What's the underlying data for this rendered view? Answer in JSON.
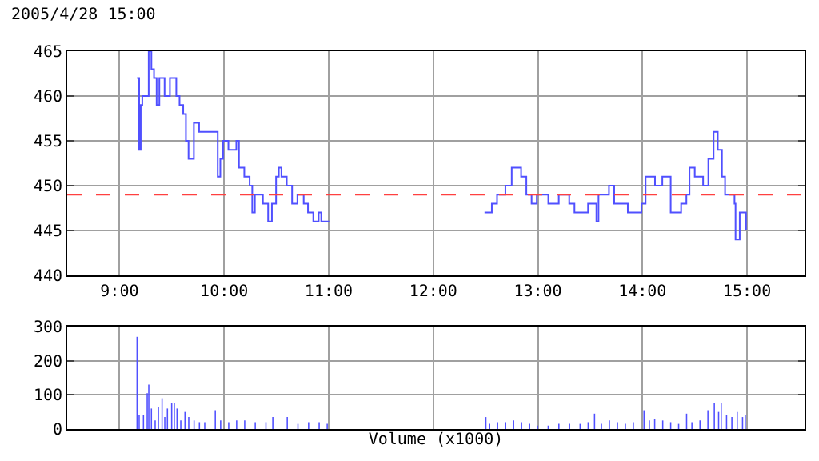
{
  "chart_data": [
    {
      "type": "step",
      "title": "2005/4/28 15:00",
      "x": [
        9.168,
        9.188,
        9.203,
        9.218,
        9.279,
        9.305,
        9.33,
        9.355,
        9.381,
        9.406,
        9.431,
        9.482,
        9.523,
        9.543,
        9.574,
        9.609,
        9.635,
        9.66,
        9.711,
        9.761,
        9.838,
        9.914,
        9.939,
        9.964,
        9.99,
        10.041,
        10.117,
        10.142,
        10.193,
        10.244,
        10.269,
        10.294,
        10.371,
        10.421,
        10.457,
        10.497,
        10.523,
        10.548,
        10.599,
        10.65,
        10.701,
        10.761,
        10.802,
        10.853,
        10.904,
        10.929,
        11.005,
        11.5,
        12.49,
        12.56,
        12.61,
        12.69,
        12.75,
        12.84,
        12.89,
        12.94,
        12.99,
        13.1,
        13.2,
        13.3,
        13.35,
        13.48,
        13.56,
        13.58,
        13.68,
        13.73,
        13.86,
        13.99,
        14.03,
        14.12,
        14.19,
        14.27,
        14.37,
        14.42,
        14.45,
        14.5,
        14.58,
        14.63,
        14.68,
        14.72,
        14.76,
        14.79,
        14.88,
        14.89,
        14.93,
        14.99
      ],
      "values": [
        462,
        454,
        459,
        460,
        465,
        463,
        462,
        459,
        462,
        462,
        460,
        462,
        462,
        460,
        459,
        458,
        455,
        453,
        457,
        456,
        456,
        456,
        451,
        453,
        455,
        454,
        455,
        452,
        451,
        450,
        447,
        449,
        448,
        446,
        448,
        451,
        452,
        451,
        450,
        448,
        449,
        448,
        447,
        446,
        447,
        446,
        446,
        null,
        447,
        448,
        449,
        450,
        452,
        451,
        449,
        448,
        449,
        448,
        449,
        448,
        447,
        448,
        446,
        449,
        450,
        448,
        447,
        448,
        451,
        450,
        451,
        447,
        448,
        449,
        452,
        451,
        450,
        453,
        456,
        454,
        451,
        449,
        448,
        444,
        447,
        445
      ],
      "color": "#5050ff",
      "line_style": "solid",
      "marker": "none",
      "xlim": [
        8.5,
        15.55
      ],
      "ylim": [
        440,
        465
      ],
      "xticks": [
        {
          "value": 9,
          "label": "9:00"
        },
        {
          "value": 10,
          "label": "10:00"
        },
        {
          "value": 11,
          "label": "11:00"
        },
        {
          "value": 12,
          "label": "12:00"
        },
        {
          "value": 13,
          "label": "13:00"
        },
        {
          "value": 14,
          "label": "14:00"
        },
        {
          "value": 15,
          "label": "15:00"
        }
      ],
      "yticks": [
        440,
        445,
        450,
        455,
        460,
        465
      ],
      "grid": true,
      "ref_lines": [
        {
          "axis": "y",
          "value": 449,
          "color": "#ff4040",
          "line_style": "dashed"
        }
      ]
    },
    {
      "type": "bar",
      "xlabel": "Volume (x1000)",
      "x": [
        9.168,
        9.188,
        9.229,
        9.265,
        9.28,
        9.305,
        9.341,
        9.372,
        9.407,
        9.433,
        9.458,
        9.499,
        9.524,
        9.55,
        9.586,
        9.626,
        9.662,
        9.713,
        9.764,
        9.815,
        9.916,
        9.967,
        10.044,
        10.12,
        10.197,
        10.298,
        10.4,
        10.466,
        10.604,
        10.706,
        10.808,
        10.909,
        10.986,
        12.503,
        12.539,
        12.615,
        12.692,
        12.768,
        12.844,
        12.921,
        12.997,
        13.099,
        13.201,
        13.303,
        13.404,
        13.481,
        13.542,
        13.608,
        13.684,
        13.761,
        13.837,
        13.913,
        14.015,
        14.066,
        14.117,
        14.194,
        14.27,
        14.346,
        14.422,
        14.473,
        14.55,
        14.626,
        14.687,
        14.728,
        14.753,
        14.804,
        14.855,
        14.906,
        14.957,
        14.983
      ],
      "values": [
        270,
        40,
        40,
        105,
        130,
        60,
        25,
        65,
        90,
        35,
        60,
        75,
        75,
        60,
        25,
        50,
        35,
        25,
        20,
        20,
        55,
        25,
        20,
        25,
        25,
        20,
        20,
        35,
        35,
        15,
        20,
        20,
        15,
        35,
        15,
        20,
        20,
        25,
        20,
        15,
        10,
        10,
        15,
        15,
        15,
        20,
        45,
        15,
        25,
        20,
        15,
        20,
        55,
        25,
        30,
        25,
        20,
        15,
        45,
        20,
        25,
        55,
        75,
        50,
        75,
        40,
        35,
        50,
        35,
        40
      ],
      "color": "#5050ff",
      "xlim": [
        8.5,
        15.55
      ],
      "ylim": [
        0,
        300
      ],
      "xticks": [
        9,
        10,
        11,
        12,
        13,
        14,
        15
      ],
      "yticks": [
        0,
        100,
        200,
        300
      ],
      "grid": true,
      "tick_labels": "y"
    }
  ]
}
